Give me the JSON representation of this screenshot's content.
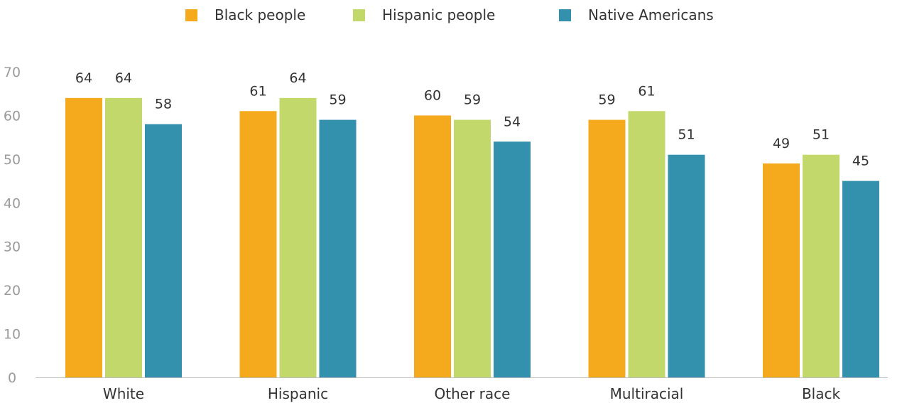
{
  "chart_data": {
    "type": "bar",
    "categories": [
      "White",
      "Hispanic",
      "Other race",
      "Multiracial",
      "Black"
    ],
    "series": [
      {
        "name": "Black people",
        "color": "#F5A91C",
        "values": [
          64,
          61,
          60,
          59,
          49
        ]
      },
      {
        "name": "Hispanic people",
        "color": "#C2D86B",
        "values": [
          64,
          64,
          59,
          61,
          51
        ]
      },
      {
        "name": "Native Americans",
        "color": "#3491AD",
        "values": [
          58,
          59,
          54,
          51,
          45
        ]
      }
    ],
    "title": "",
    "xlabel": "",
    "ylabel": "",
    "ylim": [
      0,
      70
    ],
    "yticks": [
      0,
      10,
      20,
      30,
      40,
      50,
      60,
      70
    ],
    "grid": false,
    "legend_position": "top-center",
    "data_labels": true
  }
}
